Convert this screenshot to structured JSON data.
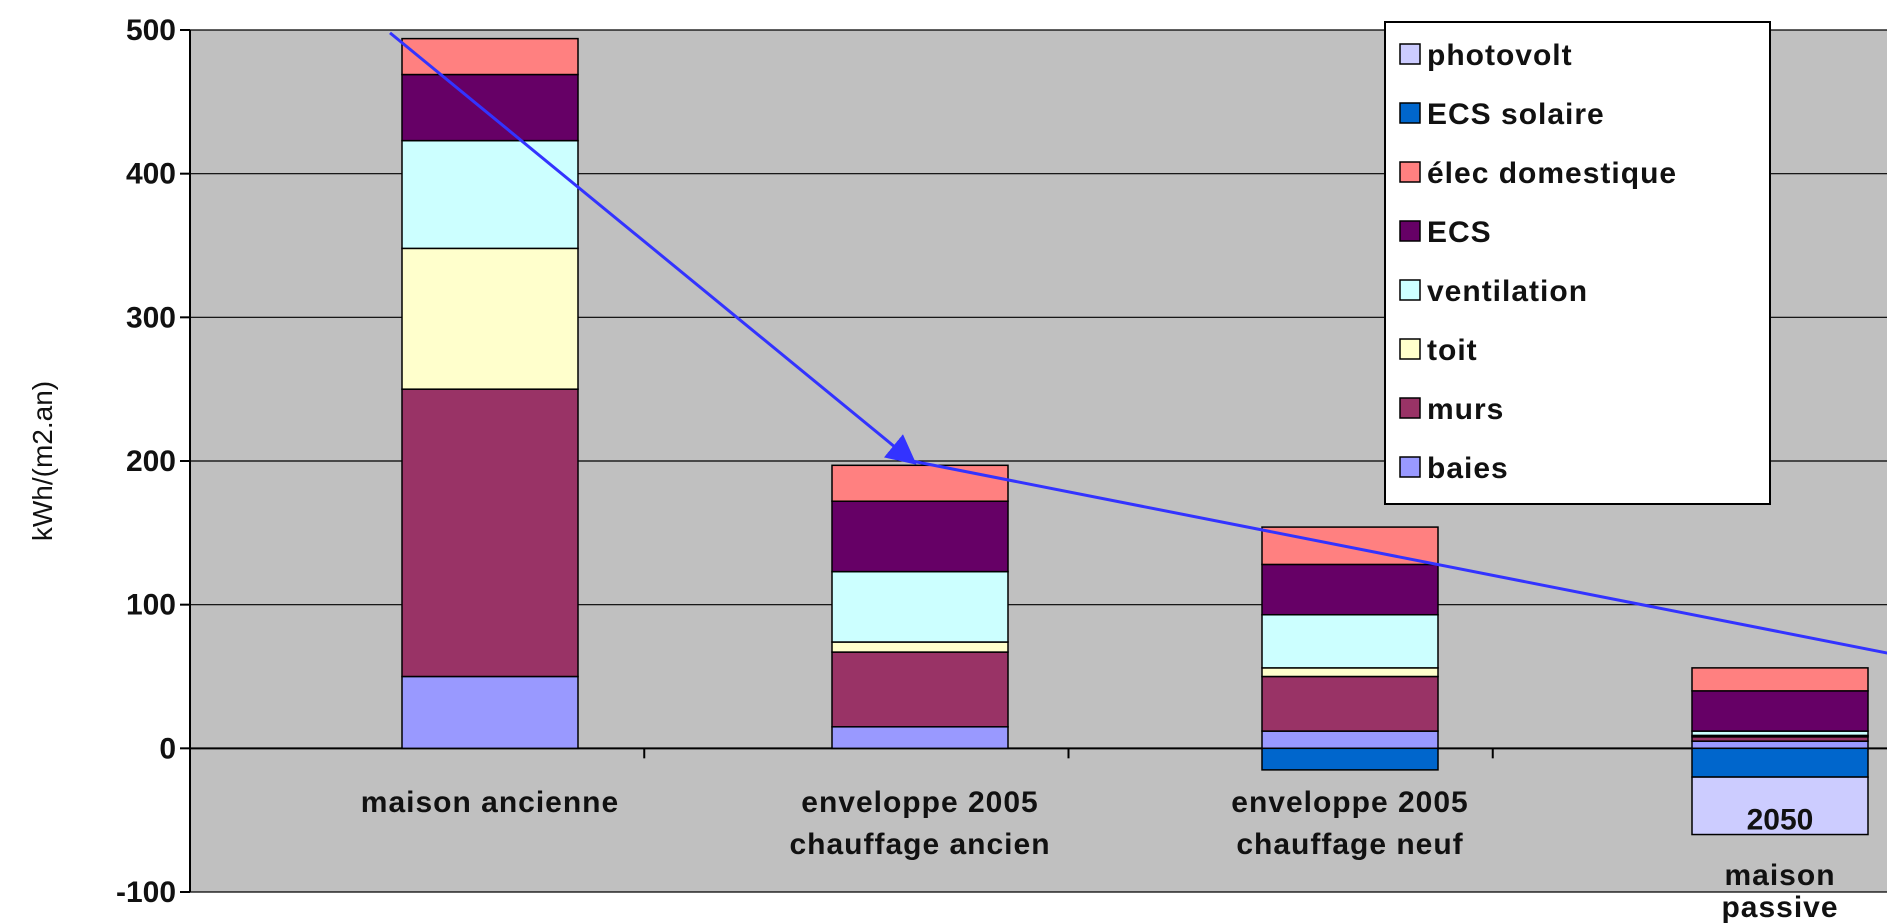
{
  "chart_data": {
    "type": "bar",
    "stacked": true,
    "ylabel": "kWh/(m2.an)",
    "ylim": [
      -100,
      500
    ],
    "yticks": [
      500,
      400,
      300,
      200,
      100,
      0,
      -100
    ],
    "grid": true,
    "legend_position": "top-right",
    "categories": [
      [
        "maison ancienne"
      ],
      [
        "enveloppe 2005",
        "chauffage ancien"
      ],
      [
        "enveloppe 2005",
        "chauffage neuf"
      ],
      [
        "maison",
        "passive"
      ]
    ],
    "bar_label": {
      "category_index": 3,
      "text": "2050"
    },
    "series": [
      {
        "name": "baies",
        "color": "#9999ff",
        "values": [
          50,
          15,
          12,
          5
        ]
      },
      {
        "name": "murs",
        "color": "#993366",
        "values": [
          200,
          52,
          38,
          3
        ]
      },
      {
        "name": "toit",
        "color": "#ffffcc",
        "values": [
          98,
          7,
          6,
          1
        ]
      },
      {
        "name": "ventilation",
        "color": "#ccffff",
        "values": [
          75,
          49,
          37,
          3
        ]
      },
      {
        "name": "ECS",
        "color": "#660066",
        "values": [
          46,
          49,
          35,
          28
        ]
      },
      {
        "name": "élec domestique",
        "color": "#ff8080",
        "values": [
          25,
          25,
          26,
          16
        ]
      },
      {
        "name": "ECS solaire",
        "color": "#0066cc",
        "values": [
          0,
          0,
          -15,
          -20
        ]
      },
      {
        "name": "photovolt",
        "color": "#ccccff",
        "values": [
          0,
          0,
          0,
          -40
        ]
      }
    ],
    "legend_order": [
      "photovolt",
      "ECS solaire",
      "élec domestique",
      "ECS",
      "ventilation",
      "toit",
      "murs",
      "baies"
    ],
    "trend_arrow": {
      "color": "#3333ff",
      "points": [
        [
          0,
          498
        ],
        [
          1,
          200
        ],
        [
          3,
          55
        ]
      ]
    }
  }
}
